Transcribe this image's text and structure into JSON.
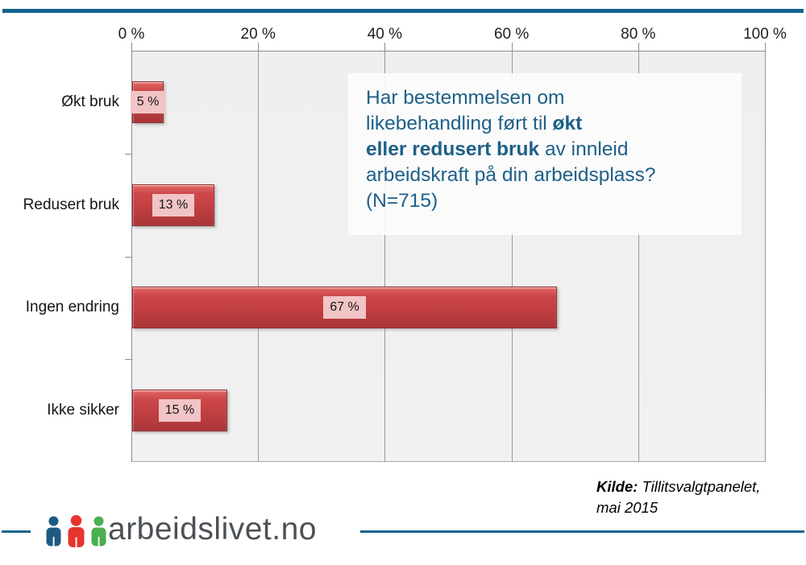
{
  "colors": {
    "accent_rule": "#16638F",
    "bar": "#C64143",
    "bar_border": "#8F2E31",
    "value_label_bg": "#F2C4C5",
    "plot_bg": "#F0F0F0",
    "gridline": "#999999",
    "question_text": "#1E6088",
    "logo_text": "#4C5156",
    "logo_people": [
      "#1D5B84",
      "#E6352C",
      "#4BAE4F"
    ]
  },
  "chart_data": {
    "type": "bar",
    "orientation": "horizontal",
    "title": "Har bestemmelsen om likebehandling ført til økt eller redusert bruk av innleid arbeidskraft på din arbeidsplass? (N=715)",
    "categories": [
      "Økt bruk",
      "Redusert bruk",
      "Ingen endring",
      "Ikke sikker"
    ],
    "values": [
      5,
      13,
      67,
      15
    ],
    "value_labels": [
      "5 %",
      "13 %",
      "67 %",
      "15 %"
    ],
    "x_ticks": [
      {
        "value": 0,
        "label": "0 %"
      },
      {
        "value": 20,
        "label": "20 %"
      },
      {
        "value": 40,
        "label": "40 %"
      },
      {
        "value": 60,
        "label": "60 %"
      },
      {
        "value": 80,
        "label": "80 %"
      },
      {
        "value": 100,
        "label": "100 %"
      }
    ],
    "xlabel": "",
    "ylabel": "",
    "xlim": [
      0,
      100
    ],
    "grid": true,
    "legend": "none"
  },
  "question_box": {
    "lines": [
      [
        {
          "text": "Har bestemmelsen om",
          "bold": false
        }
      ],
      [
        {
          "text": "likebehandling ført til ",
          "bold": false
        },
        {
          "text": "økt",
          "bold": true
        }
      ],
      [
        {
          "text": "eller redusert bruk",
          "bold": true
        },
        {
          "text": " av innleid",
          "bold": false
        }
      ],
      [
        {
          "text": "arbeidskraft på din arbeidsplass?",
          "bold": false
        }
      ],
      [
        {
          "text": "(N=715)",
          "bold": false
        }
      ]
    ]
  },
  "source": {
    "label": "Kilde:",
    "name": " Tillitsvalgtpanelet,",
    "line2": "mai 2015"
  },
  "footer": {
    "logo_text": "arbeidslivet.no",
    "logo_icon": "three-people-icon"
  }
}
